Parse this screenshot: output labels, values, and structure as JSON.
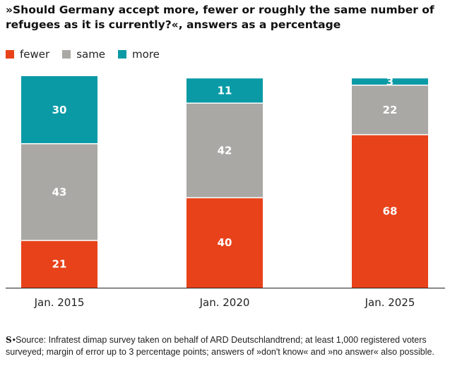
{
  "title": "»Should Germany accept more, fewer or roughly the same number of refugees as it is currently?«, answers as a percentage",
  "legend": [
    {
      "label": "fewer",
      "color": "#e8421a"
    },
    {
      "label": "same",
      "color": "#a9a8a4"
    },
    {
      "label": "more",
      "color": "#0a9aa6"
    }
  ],
  "footer": {
    "logo": "S",
    "text": "Source: Infratest dimap survey taken on behalf of ARD Deutschlandtrend; at least 1,000 registered voters surveyed; margin of error up to 3 percentage points; answers of »don't know« and »no answer« also possible."
  },
  "chart_data": {
    "type": "bar",
    "stacked": true,
    "categories": [
      "Jan. 2015",
      "Jan. 2020",
      "Jan. 2025"
    ],
    "series": [
      {
        "name": "fewer",
        "color": "#e8421a",
        "values": [
          21,
          40,
          68
        ]
      },
      {
        "name": "same",
        "color": "#a9a8a4",
        "values": [
          43,
          42,
          22
        ]
      },
      {
        "name": "more",
        "color": "#0a9aa6",
        "values": [
          30,
          11,
          3
        ]
      }
    ],
    "ylim": [
      0,
      94
    ],
    "grid": false,
    "legend_position": "top-left"
  }
}
